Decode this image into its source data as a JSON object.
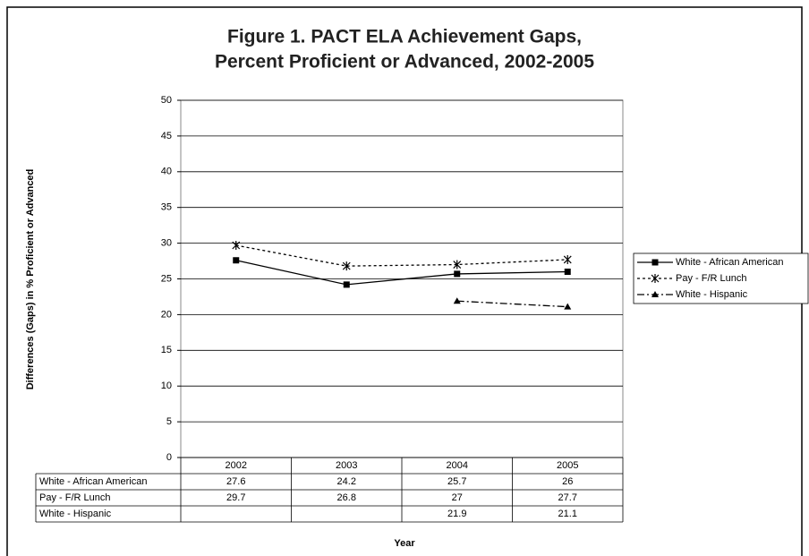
{
  "chart_data": {
    "type": "line",
    "title": [
      "Figure 1. PACT ELA Achievement Gaps,",
      "Percent Proficient or Advanced, 2002-2005"
    ],
    "xlabel": "Year",
    "ylabel": "Differences (Gaps) in % Proficient or Advanced",
    "categories": [
      "2002",
      "2003",
      "2004",
      "2005"
    ],
    "series": [
      {
        "name": "White - African American",
        "color": "#000000",
        "linestyle": "solid",
        "marker": "square",
        "values": [
          27.6,
          24.2,
          25.7,
          26
        ]
      },
      {
        "name": "Pay - F/R Lunch",
        "color": "#000000",
        "linestyle": "dotted",
        "marker": "asterisk",
        "values": [
          29.7,
          26.8,
          27,
          27.7
        ]
      },
      {
        "name": "White - Hispanic",
        "color": "#000000",
        "linestyle": "dashdot",
        "marker": "triangle",
        "values": [
          null,
          null,
          21.9,
          21.1
        ]
      }
    ],
    "ylim": [
      0,
      50
    ],
    "yticks": [
      0,
      5,
      10,
      15,
      20,
      25,
      30,
      35,
      40,
      45,
      50
    ],
    "grid": true,
    "legend": "right",
    "data_table": true
  }
}
